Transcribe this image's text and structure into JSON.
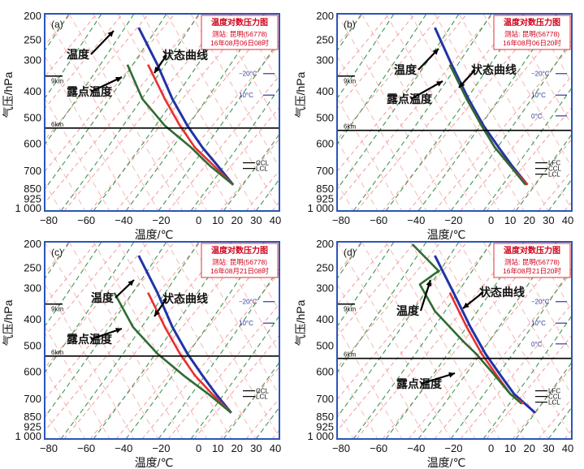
{
  "chart_data": [
    {
      "type": "line",
      "panel_label": "(a)",
      "legend": {
        "title": "温度对数压力图",
        "station": "测站: 昆明(56778)",
        "time": "16年08月06日08时"
      },
      "xlabel": "温度/℃",
      "ylabel": "气压/hPa",
      "x_ticks": [
        "−80",
        "−60",
        "−40",
        "−20",
        "0",
        "10",
        "20",
        "30",
        "40"
      ],
      "y_ticks": [
        "200",
        "250",
        "300",
        "400",
        "500",
        "600",
        "700",
        "850",
        "925",
        "1 000"
      ],
      "xlim": [
        -80,
        40
      ],
      "ylim": [
        1000,
        200
      ],
      "height_marks": [
        "9km",
        "6km"
      ],
      "annotations": [
        "温度",
        "状态曲线",
        "露点温度"
      ],
      "reference_labels": [
        "−20°C",
        "10°C",
        "CCL",
        "LCL"
      ],
      "series": [
        {
          "name": "温度",
          "color": "#2233a8",
          "x": [
            18,
            10,
            2,
            -6,
            -14,
            -22,
            -32
          ],
          "y": [
            820,
            700,
            600,
            500,
            400,
            300,
            220
          ]
        },
        {
          "name": "状态曲线",
          "color": "#e53030",
          "x": [
            18,
            8,
            -2,
            -10,
            -18,
            -27
          ],
          "y": [
            820,
            700,
            600,
            500,
            400,
            300
          ]
        },
        {
          "name": "露点温度",
          "color": "#2e6b30",
          "x": [
            18,
            6,
            -4,
            -18,
            -30,
            -38
          ],
          "y": [
            820,
            700,
            600,
            500,
            400,
            300
          ]
        }
      ]
    },
    {
      "type": "line",
      "panel_label": "(b)",
      "legend": {
        "title": "温度对数压力图",
        "station": "测站: 昆明(56778)",
        "time": "16年08月06日20时"
      },
      "xlabel": "温度/℃",
      "ylabel": "气压/hPa",
      "x_ticks": [
        "−80",
        "−60",
        "−40",
        "−20",
        "0",
        "10",
        "20",
        "30",
        "40"
      ],
      "y_ticks": [
        "200",
        "250",
        "300",
        "400",
        "500",
        "600",
        "700",
        "850",
        "925",
        "1 000"
      ],
      "xlim": [
        -80,
        40
      ],
      "ylim": [
        1000,
        200
      ],
      "height_marks": [
        "9km",
        "6km"
      ],
      "annotations": [
        "温度",
        "露点温度",
        "状态曲线"
      ],
      "reference_labels": [
        "−20°C",
        "10°C",
        "0°C",
        "LFC",
        "CCL",
        "LCL"
      ],
      "series": [
        {
          "name": "温度",
          "color": "#2233a8",
          "x": [
            19,
            11,
            4,
            -4,
            -12,
            -21,
            -30
          ],
          "y": [
            820,
            700,
            600,
            500,
            400,
            300,
            220
          ]
        },
        {
          "name": "状态曲线",
          "color": "#e53030",
          "x": [
            19,
            10,
            2,
            -5,
            -13,
            -22
          ],
          "y": [
            820,
            700,
            600,
            500,
            400,
            300
          ]
        },
        {
          "name": "露点温度",
          "color": "#2e6b30",
          "x": [
            18,
            10,
            2,
            -5,
            -13,
            -22
          ],
          "y": [
            820,
            700,
            600,
            500,
            400,
            300
          ]
        }
      ]
    },
    {
      "type": "line",
      "panel_label": "(c)",
      "legend": {
        "title": "温度对数压力图",
        "station": "测站: 昆明(56778)",
        "time": "16年08月21日08时"
      },
      "xlabel": "温度/℃",
      "ylabel": "气压/hPa",
      "x_ticks": [
        "−80",
        "−60",
        "−40",
        "−20",
        "0",
        "10",
        "20",
        "30",
        "40"
      ],
      "y_ticks": [
        "200",
        "250",
        "300",
        "400",
        "500",
        "600",
        "700",
        "850",
        "925",
        "1 000"
      ],
      "xlim": [
        -80,
        40
      ],
      "ylim": [
        1000,
        200
      ],
      "height_marks": [
        "9km",
        "6km"
      ],
      "annotations": [
        "温度",
        "状态曲线",
        "露点温度"
      ],
      "reference_labels": [
        "−20°C",
        "10°C",
        "CCL",
        "LCL"
      ],
      "series": [
        {
          "name": "温度",
          "color": "#2233a8",
          "x": [
            17,
            9,
            2,
            -6,
            -14,
            -22,
            -32
          ],
          "y": [
            820,
            700,
            600,
            500,
            400,
            300,
            220
          ]
        },
        {
          "name": "状态曲线",
          "color": "#e53030",
          "x": [
            17,
            7,
            -2,
            -10,
            -18,
            -27
          ],
          "y": [
            820,
            700,
            600,
            500,
            400,
            300
          ]
        },
        {
          "name": "露点温度",
          "color": "#2e6b30",
          "x": [
            17,
            5,
            -8,
            -22,
            -35,
            -45
          ],
          "y": [
            820,
            700,
            600,
            500,
            400,
            300
          ]
        }
      ]
    },
    {
      "type": "line",
      "panel_label": "(d)",
      "legend": {
        "title": "温度对数压力图",
        "station": "测站: 昆明(56778)",
        "time": "16年08月21日20时"
      },
      "xlabel": "温度/℃",
      "ylabel": "气压/hPa",
      "x_ticks": [
        "−80",
        "−60",
        "−40",
        "−20",
        "0",
        "10",
        "20",
        "30",
        "40"
      ],
      "y_ticks": [
        "200",
        "250",
        "300",
        "400",
        "500",
        "600",
        "700",
        "850",
        "925",
        "1 000"
      ],
      "xlim": [
        -80,
        40
      ],
      "ylim": [
        1000,
        200
      ],
      "height_marks": [
        "9km",
        "6km"
      ],
      "annotations": [
        "状态曲线",
        "温度",
        "露点温度"
      ],
      "reference_labels": [
        "−20°C",
        "10°C",
        "0°C",
        "LFC",
        "CCL",
        "LCL"
      ],
      "series": [
        {
          "name": "温度",
          "color": "#2233a8",
          "x": [
            23,
            12,
            5,
            -3,
            -11,
            -20,
            -30
          ],
          "y": [
            820,
            700,
            600,
            500,
            400,
            300,
            220
          ]
        },
        {
          "name": "状态曲线",
          "color": "#e53030",
          "x": [
            17,
            10,
            3,
            -5,
            -13,
            -22
          ],
          "y": [
            760,
            700,
            600,
            500,
            400,
            300
          ]
        },
        {
          "name": "露点温度",
          "color": "#2e6b30",
          "x": [
            16,
            10,
            2,
            -8,
            -15,
            -30,
            -38,
            -28,
            -42
          ],
          "y": [
            760,
            700,
            600,
            500,
            450,
            350,
            280,
            250,
            200
          ]
        }
      ]
    }
  ]
}
